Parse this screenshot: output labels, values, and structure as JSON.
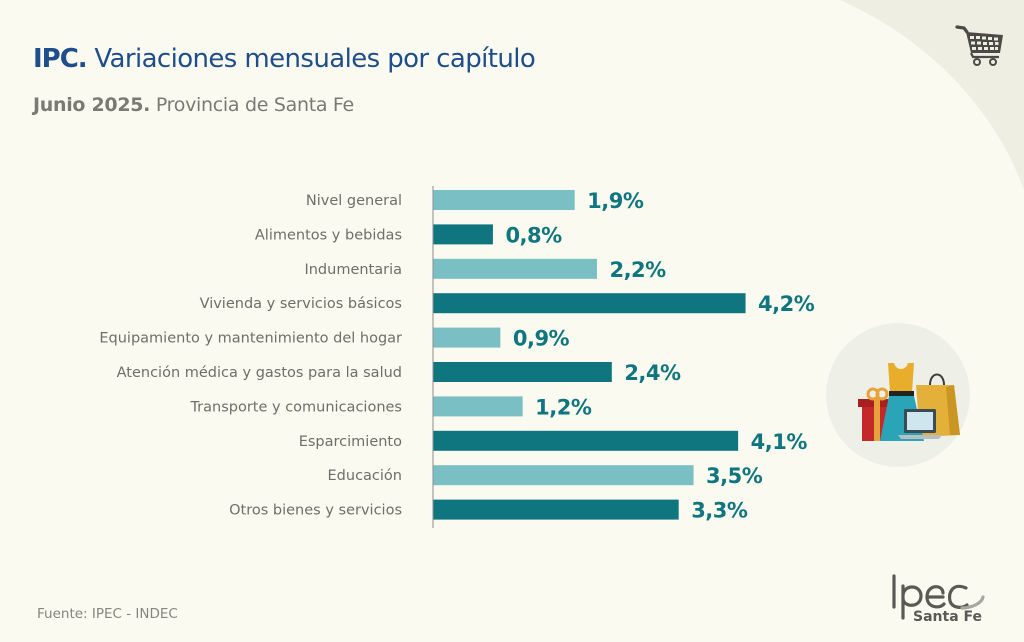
{
  "header": {
    "title_bold": "IPC.",
    "title_rest": " Variaciones mensuales por capítulo",
    "subtitle_bold": "Junio 2025.",
    "subtitle_rest": " Provincia de Santa Fe"
  },
  "footer": {
    "source": "Fuente: IPEC - INDEC",
    "logo_text": "Ipec",
    "logo_subtext": "Santa Fe"
  },
  "icons": {
    "top_right": "shopping-cart-icon",
    "illustration": "shopping-items-illustration"
  },
  "colors": {
    "light_bar": "#7abfc3",
    "dark_bar": "#0f7680",
    "value_text": "#0f7680",
    "title": "#1f4e8c",
    "background": "#fafaf0"
  },
  "chart_data": {
    "type": "bar",
    "orientation": "horizontal",
    "title": "IPC. Variaciones mensuales por capítulo",
    "subtitle": "Junio 2025. Provincia de Santa Fe",
    "xlabel": "",
    "ylabel": "",
    "unit": "%",
    "xlim": [
      0,
      4.2
    ],
    "grid": false,
    "legend": "none",
    "categories": [
      "Nivel general",
      "Alimentos y bebidas",
      "Indumentaria",
      "Vivienda y servicios básicos",
      "Equipamiento y mantenimiento del hogar",
      "Atención médica y gastos para la salud",
      "Transporte y comunicaciones",
      "Esparcimiento",
      "Educación",
      "Otros bienes y servicios"
    ],
    "values": [
      1.9,
      0.8,
      2.2,
      4.2,
      0.9,
      2.4,
      1.2,
      4.1,
      3.5,
      3.3
    ],
    "data_labels": [
      "1,9%",
      "0,8%",
      "2,2%",
      "4,2%",
      "0,9%",
      "2,4%",
      "1,2%",
      "4,1%",
      "3,5%",
      "3,3%"
    ],
    "bar_shades": [
      "light",
      "dark",
      "light",
      "dark",
      "light",
      "dark",
      "light",
      "dark",
      "light",
      "dark"
    ]
  }
}
